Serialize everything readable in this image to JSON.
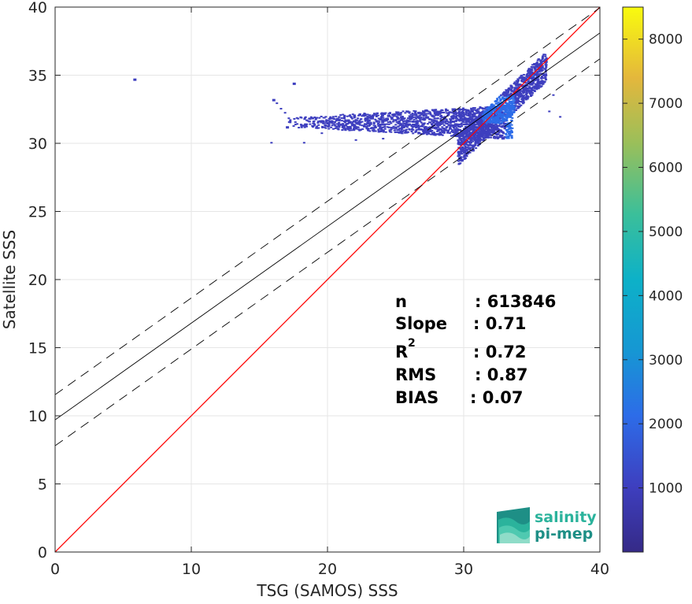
{
  "chart_data": {
    "type": "heatmap",
    "title": "",
    "xlabel": "TSG (SAMOS) SSS",
    "ylabel": "Satellite SSS",
    "xlim": [
      0,
      40
    ],
    "ylim": [
      0,
      40
    ],
    "xticks": [
      0,
      10,
      20,
      30,
      40
    ],
    "yticks": [
      0,
      5,
      10,
      15,
      20,
      25,
      30,
      35,
      40
    ],
    "grid": true,
    "colorbar": {
      "range": [
        0,
        8500
      ],
      "ticks": [
        1000,
        2000,
        3000,
        4000,
        5000,
        6000,
        7000,
        8000
      ],
      "colormap": "parula"
    },
    "density_cloud": {
      "description_points": [
        {
          "x": 5.8,
          "y": 34.7,
          "count": 300
        },
        {
          "x": 16.0,
          "y": 33.2,
          "count": 300
        },
        {
          "x": 17.5,
          "y": 34.4,
          "count": 300
        },
        {
          "x": 17.0,
          "y": 31.2,
          "count": 400
        },
        {
          "x": 20.0,
          "y": 31.5,
          "count": 500
        },
        {
          "x": 24.0,
          "y": 31.6,
          "count": 700
        },
        {
          "x": 28.0,
          "y": 31.5,
          "count": 900
        },
        {
          "x": 31.0,
          "y": 31.8,
          "count": 1200
        },
        {
          "x": 32.5,
          "y": 32.5,
          "count": 2500
        },
        {
          "x": 33.5,
          "y": 33.5,
          "count": 2000
        },
        {
          "x": 35.0,
          "y": 35.0,
          "count": 1800
        }
      ]
    },
    "lines": [
      {
        "name": "identity",
        "color": "#ff0000",
        "style": "solid",
        "slope": 1.0,
        "intercept": 0.0
      },
      {
        "name": "fit",
        "color": "#000000",
        "style": "solid",
        "slope": 0.71,
        "intercept": 9.7
      },
      {
        "name": "fit_upper",
        "color": "#000000",
        "style": "dashed",
        "slope": 0.71,
        "intercept": 11.55
      },
      {
        "name": "fit_lower",
        "color": "#000000",
        "style": "dashed",
        "slope": 0.71,
        "intercept": 7.8
      }
    ],
    "annotations": {
      "n_label": "n",
      "n_value": ": 613846",
      "slope_label": "Slope",
      "slope_value": ": 0.71",
      "r2_label": "R",
      "r2_sup": "2",
      "r2_value": ": 0.72",
      "rms_label": "RMS",
      "rms_value": ": 0.87",
      "bias_label": "BIAS",
      "bias_value": ": 0.07"
    }
  },
  "logo": {
    "line1": "salinity",
    "line2": "pi-mep",
    "colors": [
      "#2bb39c",
      "#1e8f86",
      "#4fc9b0",
      "#8fdcc8"
    ]
  }
}
